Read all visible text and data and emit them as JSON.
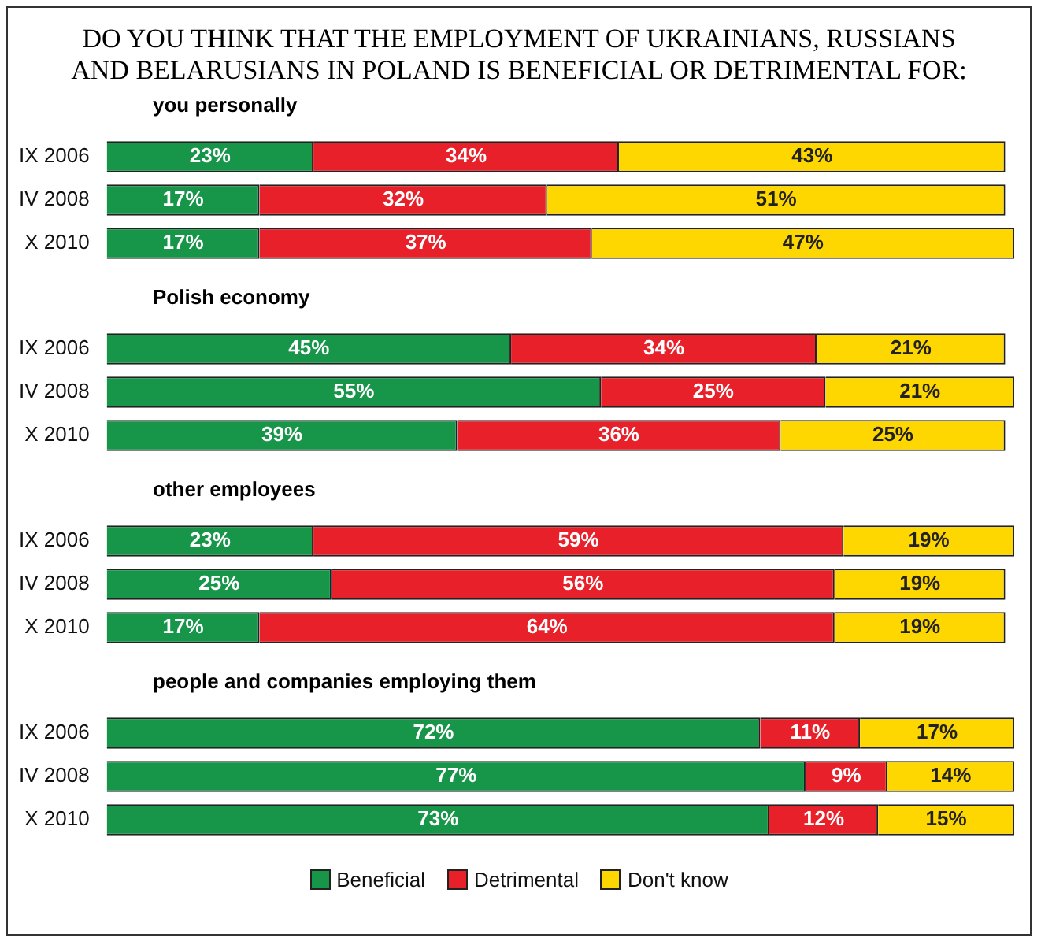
{
  "chart_data": [
    {
      "type": "bar",
      "orientation": "horizontal",
      "stacked": true,
      "title": "DO YOU THINK THAT THE EMPLOYMENT OF UKRAINIANS, RUSSIANS AND BELARUSIANS  IN POLAND IS BENEFICIAL OR DETRIMENTAL FOR:",
      "subtitle": "you personally",
      "categories": [
        "IX 2006",
        "IV 2008",
        "X 2010"
      ],
      "xlim": [
        0,
        101
      ],
      "tick_labels": "y",
      "grid": false,
      "series": [
        {
          "color": "#17964a",
          "values": [
            23,
            17,
            17
          ],
          "value_labels": [
            "23%",
            "17%",
            "17%"
          ]
        },
        {
          "color": "#e8202a",
          "values": [
            34,
            32,
            37
          ],
          "value_labels": [
            "34%",
            "32%",
            "37%"
          ]
        },
        {
          "color": "#ffd700",
          "values": [
            43,
            51,
            47
          ],
          "value_labels": [
            "43%",
            "51%",
            "47%"
          ]
        }
      ]
    },
    {
      "type": "bar",
      "orientation": "horizontal",
      "stacked": true,
      "subtitle": "Polish economy",
      "categories": [
        "IX 2006",
        "IV 2008",
        "X 2010"
      ],
      "xlim": [
        0,
        101
      ],
      "tick_labels": "y",
      "grid": false,
      "series": [
        {
          "color": "#17964a",
          "values": [
            45,
            55,
            39
          ],
          "value_labels": [
            "45%",
            "55%",
            "39%"
          ]
        },
        {
          "color": "#e8202a",
          "values": [
            34,
            25,
            36
          ],
          "value_labels": [
            "34%",
            "25%",
            "36%"
          ]
        },
        {
          "color": "#ffd700",
          "values": [
            21,
            21,
            25
          ],
          "value_labels": [
            "21%",
            "21%",
            "25%"
          ]
        }
      ]
    },
    {
      "type": "bar",
      "orientation": "horizontal",
      "stacked": true,
      "subtitle": "other employees",
      "categories": [
        "IX 2006",
        "IV 2008",
        "X 2010"
      ],
      "xlim": [
        0,
        101
      ],
      "tick_labels": "y",
      "grid": false,
      "series": [
        {
          "color": "#17964a",
          "values": [
            23,
            25,
            17
          ],
          "value_labels": [
            "23%",
            "25%",
            "17%"
          ]
        },
        {
          "color": "#e8202a",
          "values": [
            59,
            56,
            64
          ],
          "value_labels": [
            "59%",
            "56%",
            "64%"
          ]
        },
        {
          "color": "#ffd700",
          "values": [
            19,
            19,
            19
          ],
          "value_labels": [
            "19%",
            "19%",
            "19%"
          ]
        }
      ]
    },
    {
      "type": "bar",
      "orientation": "horizontal",
      "stacked": true,
      "subtitle": "people and companies employing them",
      "categories": [
        "IX 2006",
        "IV 2008",
        "X 2010"
      ],
      "xlim": [
        0,
        100
      ],
      "tick_labels": "y",
      "grid": false,
      "legend": "bottom",
      "series": [
        {
          "name": "Beneficial",
          "color": "#17964a",
          "values": [
            72,
            77,
            73
          ],
          "value_labels": [
            "72%",
            "77%",
            "73%"
          ]
        },
        {
          "name": "Detrimental",
          "color": "#e8202a",
          "values": [
            11,
            9,
            12
          ],
          "value_labels": [
            "11%",
            "9%",
            "12%"
          ]
        },
        {
          "name": "Don't know",
          "color": "#ffd700",
          "values": [
            17,
            14,
            15
          ],
          "value_labels": [
            "17%",
            "14%",
            "15%"
          ]
        }
      ]
    }
  ]
}
